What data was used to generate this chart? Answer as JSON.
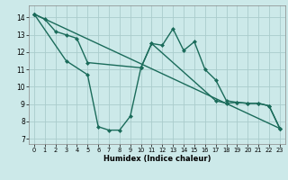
{
  "title": "",
  "xlabel": "Humidex (Indice chaleur)",
  "ylabel": "",
  "xlim": [
    -0.5,
    23.5
  ],
  "ylim": [
    6.7,
    14.7
  ],
  "yticks": [
    7,
    8,
    9,
    10,
    11,
    12,
    13,
    14
  ],
  "xticks": [
    0,
    1,
    2,
    3,
    4,
    5,
    6,
    7,
    8,
    9,
    10,
    11,
    12,
    13,
    14,
    15,
    16,
    17,
    18,
    19,
    20,
    21,
    22,
    23
  ],
  "bg_color": "#cce9e9",
  "grid_color": "#aacccc",
  "line_color": "#1a6b5a",
  "line1_x": [
    0,
    1,
    2,
    3,
    4,
    5,
    10,
    11,
    12,
    13,
    14,
    15,
    16,
    17,
    18,
    19,
    20,
    21,
    22,
    23
  ],
  "line1_y": [
    14.2,
    13.9,
    13.2,
    13.0,
    12.8,
    11.4,
    11.1,
    12.5,
    12.4,
    13.35,
    12.1,
    12.6,
    11.0,
    10.4,
    9.2,
    9.1,
    9.05,
    9.05,
    8.9,
    7.6
  ],
  "line2_x": [
    0,
    3,
    5,
    6,
    7,
    8,
    9,
    10,
    11,
    17,
    18,
    19,
    20,
    21,
    22,
    23
  ],
  "line2_y": [
    14.2,
    11.5,
    10.7,
    7.7,
    7.5,
    7.5,
    8.3,
    11.1,
    12.5,
    9.2,
    9.05,
    9.1,
    9.05,
    9.05,
    8.9,
    7.6
  ],
  "line3_x": [
    0,
    23
  ],
  "line3_y": [
    14.2,
    7.6
  ],
  "marker": "D",
  "markersize": 2.5,
  "linewidth": 1.0
}
